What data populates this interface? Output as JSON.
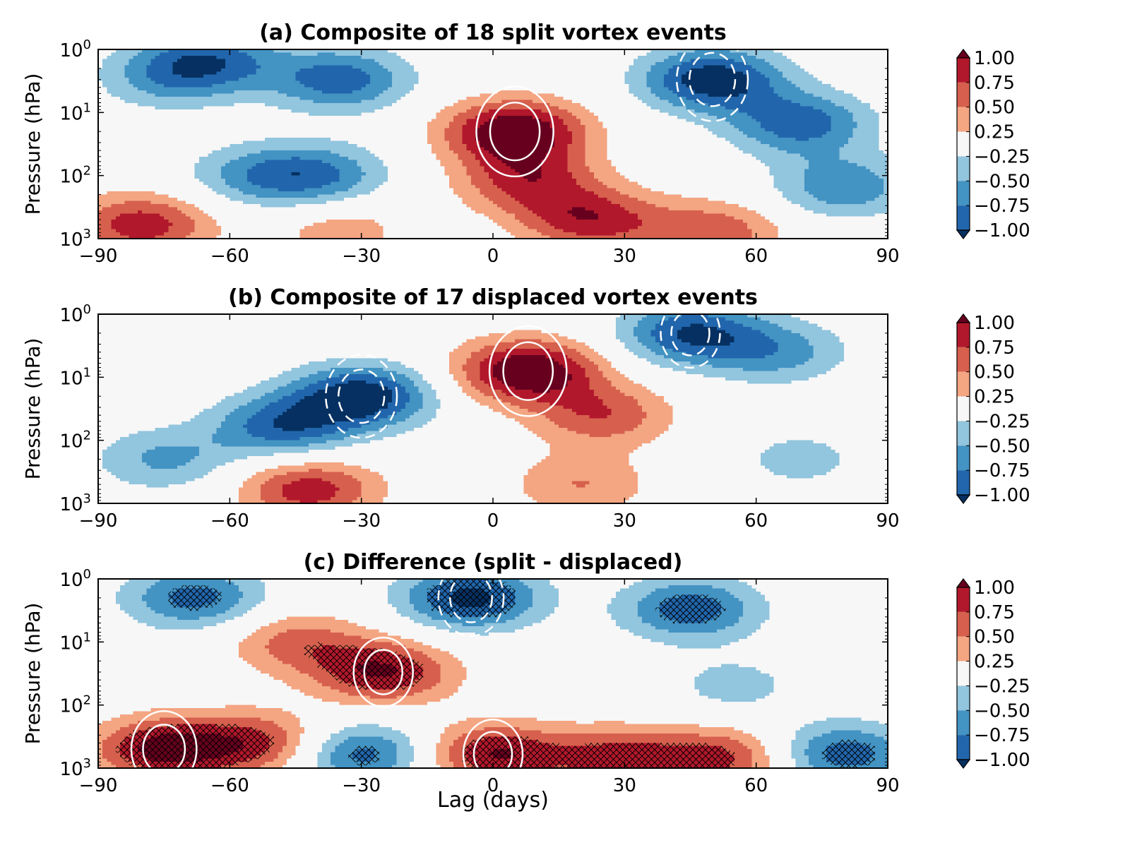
{
  "chart_data": {
    "type": "heatmap",
    "xlabel": "Lag (days)",
    "x_ticks": [
      -90,
      -60,
      -30,
      0,
      30,
      60,
      90
    ],
    "xlim": [
      -90,
      90
    ],
    "y_ticks": [
      1,
      10,
      100,
      1000
    ],
    "y_tick_labels": [
      "10^0",
      "10^1",
      "10^2",
      "10^3"
    ],
    "ylim": [
      1000,
      1
    ],
    "y_scale": "log",
    "y_inverted": true,
    "colorbar": {
      "labels": [
        "1.00",
        "0.75",
        "0.50",
        "0.25",
        "−0.25",
        "−0.50",
        "−0.75",
        "−1.00"
      ],
      "levels": [
        -1.0,
        -0.75,
        -0.5,
        -0.25,
        0.25,
        0.5,
        0.75,
        1.0
      ],
      "colors": [
        "#053061",
        "#2166ac",
        "#4393c3",
        "#92c5de",
        "#f7f7f7",
        "#f4a582",
        "#d6604d",
        "#b2182b",
        "#67001f"
      ],
      "extend": "both"
    },
    "panels": [
      {
        "id": "a",
        "title": "(a) Composite of 18 split vortex events",
        "ylabel": "Pressure (hPa)",
        "hatching": false,
        "features": [
          {
            "lag": 5,
            "pressure": 20,
            "value": 1.3
          },
          {
            "lag": 8,
            "pressure": 120,
            "value": 0.8
          },
          {
            "lag": 22,
            "pressure": 500,
            "value": 0.9
          },
          {
            "lag": 50,
            "pressure": 800,
            "value": 0.7
          },
          {
            "lag": -80,
            "pressure": 600,
            "value": 0.9
          },
          {
            "lag": -35,
            "pressure": 700,
            "value": 0.4
          },
          {
            "lag": 50,
            "pressure": 3,
            "value": -1.2
          },
          {
            "lag": 70,
            "pressure": 15,
            "value": -0.9
          },
          {
            "lag": -65,
            "pressure": 1.5,
            "value": -0.85
          },
          {
            "lag": -35,
            "pressure": 3,
            "value": -0.9
          },
          {
            "lag": -75,
            "pressure": 3,
            "value": -0.45
          },
          {
            "lag": -55,
            "pressure": 100,
            "value": -0.5
          },
          {
            "lag": -40,
            "pressure": 100,
            "value": -0.75
          },
          {
            "lag": 80,
            "pressure": 150,
            "value": -0.7
          }
        ]
      },
      {
        "id": "b",
        "title": "(b) Composite of 17 displaced vortex events",
        "ylabel": "Pressure (hPa)",
        "hatching": false,
        "features": [
          {
            "lag": 8,
            "pressure": 8,
            "value": 1.3
          },
          {
            "lag": 25,
            "pressure": 40,
            "value": 0.7
          },
          {
            "lag": -42,
            "pressure": 600,
            "value": 0.9
          },
          {
            "lag": 20,
            "pressure": 500,
            "value": 0.5
          },
          {
            "lag": -30,
            "pressure": 20,
            "value": -1.2
          },
          {
            "lag": -48,
            "pressure": 60,
            "value": -0.9
          },
          {
            "lag": 45,
            "pressure": 2,
            "value": -1.0
          },
          {
            "lag": 65,
            "pressure": 4,
            "value": -0.6
          },
          {
            "lag": -75,
            "pressure": 200,
            "value": -0.55
          },
          {
            "lag": 70,
            "pressure": 200,
            "value": -0.35
          }
        ]
      },
      {
        "id": "c",
        "title": "(c) Difference (split - displaced)",
        "ylabel": "Pressure (hPa)",
        "hatching": true,
        "features": [
          {
            "lag": -25,
            "pressure": 30,
            "value": 1.0
          },
          {
            "lag": -75,
            "pressure": 500,
            "value": 1.1
          },
          {
            "lag": -53,
            "pressure": 400,
            "value": 0.8
          },
          {
            "lag": 0,
            "pressure": 600,
            "value": 1.0
          },
          {
            "lag": -45,
            "pressure": 10,
            "value": 0.6
          },
          {
            "lag": 28,
            "pressure": 700,
            "value": 0.8
          },
          {
            "lag": 52,
            "pressure": 700,
            "value": 0.8
          },
          {
            "lag": -5,
            "pressure": 2,
            "value": -1.1
          },
          {
            "lag": -68,
            "pressure": 2,
            "value": -0.85
          },
          {
            "lag": 45,
            "pressure": 3,
            "value": -0.9
          },
          {
            "lag": 80,
            "pressure": 600,
            "value": -0.9
          },
          {
            "lag": -30,
            "pressure": 600,
            "value": -0.9
          },
          {
            "lag": 55,
            "pressure": 50,
            "value": -0.35
          }
        ]
      }
    ]
  }
}
